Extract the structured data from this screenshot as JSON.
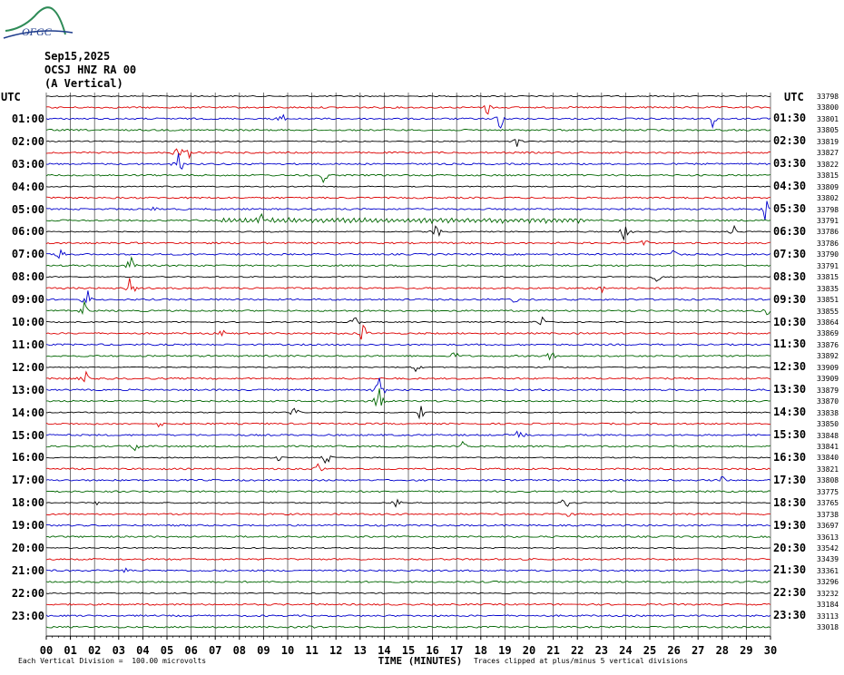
{
  "logo_text": "OFGC",
  "header": {
    "date": "Sep15,2025",
    "station": "OCSJ HNZ RA 00",
    "component": "(A Vertical)"
  },
  "utc_left": "UTC",
  "utc_right": "UTC",
  "xaxis_label": "TIME (MINUTES)",
  "footer_left": "Each Vertical Division =  100.00 microvolts",
  "footer_right": "Traces clipped at plus/minus 5 vertical divisions",
  "chart_data": {
    "type": "line",
    "title": "",
    "xlabel": "TIME (MINUTES)",
    "xlim": [
      0,
      30
    ],
    "x_ticks": [
      "00",
      "01",
      "02",
      "03",
      "04",
      "05",
      "06",
      "07",
      "08",
      "09",
      "10",
      "11",
      "12",
      "13",
      "14",
      "15",
      "16",
      "17",
      "18",
      "19",
      "20",
      "21",
      "22",
      "23",
      "24",
      "25",
      "26",
      "27",
      "28",
      "29",
      "30"
    ],
    "left_labels": [
      "01:00",
      "02:00",
      "03:00",
      "04:00",
      "05:00",
      "06:00",
      "07:00",
      "08:00",
      "09:00",
      "10:00",
      "11:00",
      "12:00",
      "13:00",
      "14:00",
      "15:00",
      "16:00",
      "17:00",
      "18:00",
      "19:00",
      "20:00",
      "21:00",
      "22:00",
      "23:00"
    ],
    "right_labels": [
      "01:30",
      "02:30",
      "03:30",
      "04:30",
      "05:30",
      "06:30",
      "07:30",
      "08:30",
      "09:30",
      "10:30",
      "11:30",
      "12:30",
      "13:30",
      "14:30",
      "15:30",
      "16:30",
      "17:30",
      "18:30",
      "19:30",
      "20:30",
      "21:30",
      "22:30",
      "23:30"
    ],
    "trace_counts": [
      "33798",
      "33800",
      "33801",
      "33805",
      "33819",
      "33827",
      "33822",
      "33815",
      "33809",
      "33802",
      "33798",
      "33791",
      "33786",
      "33786",
      "33790",
      "33791",
      "33815",
      "33835",
      "33851",
      "33855",
      "33864",
      "33869",
      "33876",
      "33892",
      "33909",
      "33909",
      "33879",
      "33870",
      "33838",
      "33850",
      "33848",
      "33841",
      "33840",
      "33821",
      "33808",
      "33775",
      "33765",
      "33738",
      "33697",
      "33613",
      "33542",
      "33439",
      "33361",
      "33296",
      "33232",
      "33184",
      "33113",
      "33018"
    ],
    "trace_colors": [
      "#000000",
      "#dd0000",
      "#0000cc",
      "#006600"
    ],
    "grid": true,
    "events": [
      {
        "trace": 2,
        "minute": 9.7,
        "amp": 12
      },
      {
        "trace": 2,
        "minute": 18.8,
        "amp": 14
      },
      {
        "trace": 1,
        "minute": 18.3,
        "amp": 12
      },
      {
        "trace": 2,
        "minute": 27.6,
        "amp": 12
      },
      {
        "trace": 4,
        "minute": 19.5,
        "amp": 10
      },
      {
        "trace": 5,
        "minute": 5.5,
        "amp": 14
      },
      {
        "trace": 5,
        "minute": 5.9,
        "amp": 8
      },
      {
        "trace": 6,
        "minute": 5.5,
        "amp": 18
      },
      {
        "trace": 7,
        "minute": 11.5,
        "amp": 12
      },
      {
        "trace": 10,
        "minute": 4.6,
        "amp": 10
      },
      {
        "trace": 10,
        "minute": 29.8,
        "amp": 16
      },
      {
        "trace": 11,
        "minute": 8.9,
        "amp": 8
      },
      {
        "trace": 12,
        "minute": 24.0,
        "amp": 18
      },
      {
        "trace": 12,
        "minute": 16.2,
        "amp": 12
      },
      {
        "trace": 12,
        "minute": 28.5,
        "amp": 10
      },
      {
        "trace": 13,
        "minute": 24.8,
        "amp": 8
      },
      {
        "trace": 14,
        "minute": 0.6,
        "amp": 10
      },
      {
        "trace": 14,
        "minute": 26.0,
        "amp": 12
      },
      {
        "trace": 15,
        "minute": 3.5,
        "amp": 14
      },
      {
        "trace": 16,
        "minute": 25.3,
        "amp": 10
      },
      {
        "trace": 17,
        "minute": 3.5,
        "amp": 18
      },
      {
        "trace": 17,
        "minute": 23.0,
        "amp": 10
      },
      {
        "trace": 18,
        "minute": 1.7,
        "amp": 14
      },
      {
        "trace": 18,
        "minute": 19.5,
        "amp": 10
      },
      {
        "trace": 19,
        "minute": 1.6,
        "amp": 12
      },
      {
        "trace": 19,
        "minute": 29.9,
        "amp": 8
      },
      {
        "trace": 20,
        "minute": 12.8,
        "amp": 10
      },
      {
        "trace": 20,
        "minute": 20.5,
        "amp": 12
      },
      {
        "trace": 21,
        "minute": 13.1,
        "amp": 18
      },
      {
        "trace": 21,
        "minute": 7.3,
        "amp": 8
      },
      {
        "trace": 23,
        "minute": 20.9,
        "amp": 12
      },
      {
        "trace": 23,
        "minute": 16.9,
        "amp": 8
      },
      {
        "trace": 24,
        "minute": 15.3,
        "amp": 8
      },
      {
        "trace": 25,
        "minute": 1.6,
        "amp": 12
      },
      {
        "trace": 26,
        "minute": 13.8,
        "amp": 22
      },
      {
        "trace": 27,
        "minute": 13.8,
        "amp": 24
      },
      {
        "trace": 28,
        "minute": 15.5,
        "amp": 10
      },
      {
        "trace": 28,
        "minute": 10.3,
        "amp": 8
      },
      {
        "trace": 29,
        "minute": 4.7,
        "amp": 8
      },
      {
        "trace": 30,
        "minute": 19.6,
        "amp": 8
      },
      {
        "trace": 31,
        "minute": 17.2,
        "amp": 8
      },
      {
        "trace": 31,
        "minute": 3.7,
        "amp": 8
      },
      {
        "trace": 32,
        "minute": 11.6,
        "amp": 10
      },
      {
        "trace": 32,
        "minute": 9.6,
        "amp": 6
      },
      {
        "trace": 33,
        "minute": 11.3,
        "amp": 8
      },
      {
        "trace": 34,
        "minute": 28.0,
        "amp": 6
      },
      {
        "trace": 36,
        "minute": 21.5,
        "amp": 10
      },
      {
        "trace": 36,
        "minute": 14.5,
        "amp": 6
      },
      {
        "trace": 36,
        "minute": 2.1,
        "amp": 8
      },
      {
        "trace": 37,
        "minute": 21.7,
        "amp": 8
      },
      {
        "trace": 42,
        "minute": 3.3,
        "amp": 4
      },
      {
        "trace": 47,
        "minute": 10.9,
        "amp": 3
      }
    ]
  }
}
